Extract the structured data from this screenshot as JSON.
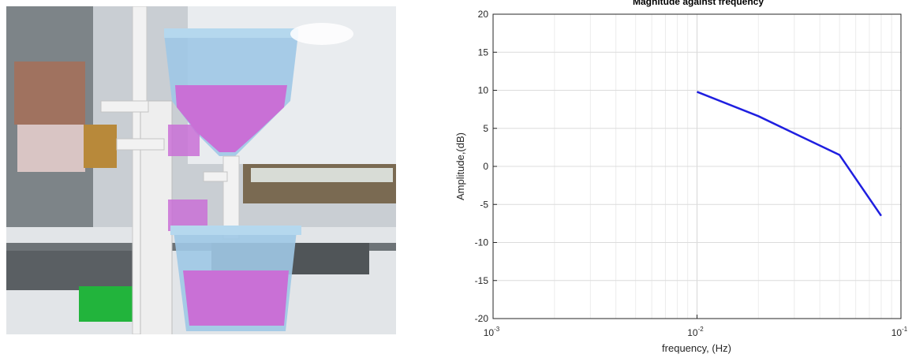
{
  "photo": {
    "subject": "laboratory-tank-process-rig",
    "colors": {
      "liquid": "#c970d6",
      "tank": "#9ec8e6",
      "pipe": "#f2f2f2",
      "board": "#22b43c"
    }
  },
  "chart_data": {
    "type": "line",
    "title": "Magnitude against frequency",
    "xlabel": "frequency, (Hz)",
    "ylabel": "Amplitude,(dB)",
    "xscale": "log",
    "xlim": [
      0.001,
      0.1
    ],
    "ylim": [
      -20,
      20
    ],
    "grid": true,
    "x_ticks": [
      {
        "base": "10",
        "exp": "-3",
        "value": 0.001
      },
      {
        "base": "10",
        "exp": "-2",
        "value": 0.01
      },
      {
        "base": "10",
        "exp": "-1",
        "value": 0.1
      }
    ],
    "y_ticks": [
      20,
      15,
      10,
      5,
      0,
      -5,
      -10,
      -15,
      -20
    ],
    "series": [
      {
        "color": "#1f1fe0",
        "x": [
          0.01,
          0.02,
          0.05,
          0.08
        ],
        "y": [
          9.8,
          6.6,
          1.5,
          -6.5
        ]
      }
    ]
  }
}
